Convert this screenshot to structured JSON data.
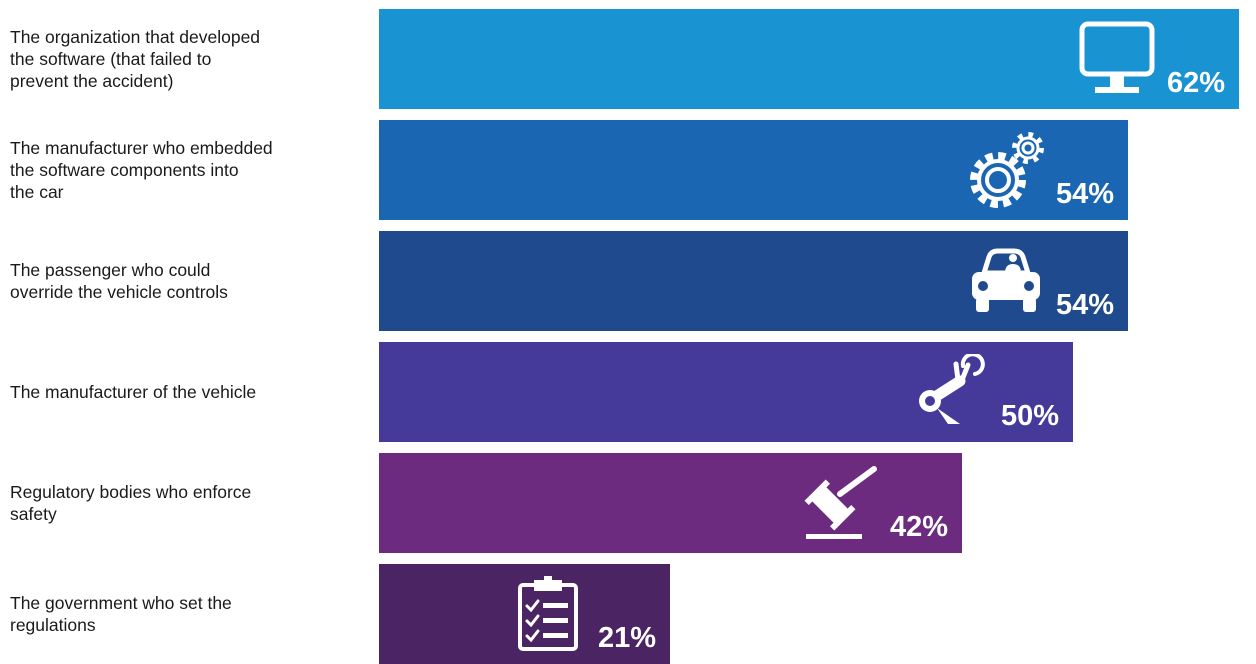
{
  "chart_data": {
    "type": "bar",
    "orientation": "horizontal",
    "categories": [
      "The organization that developed\nthe software (that failed to\nprevent the accident)",
      "The manufacturer who embedded\nthe software components into\nthe car",
      "The passenger who could\noverride the vehicle controls",
      "The manufacturer of the vehicle",
      "Regulatory bodies who enforce\nsafety",
      "The government who set the\nregulations"
    ],
    "values": [
      62,
      54,
      54,
      50,
      42,
      21
    ],
    "value_labels": [
      "62%",
      "54%",
      "54%",
      "50%",
      "42%",
      "21%"
    ],
    "unit": "%",
    "xlim": [
      0,
      62
    ],
    "bar_colors": [
      "#1a93d2",
      "#1a66b2",
      "#1f4a8e",
      "#453a99",
      "#6c2b7f",
      "#4a2463"
    ],
    "icons": [
      "monitor-icon",
      "gears-icon",
      "car-icon",
      "robot-arm-icon",
      "gavel-icon",
      "clipboard-checklist-icon"
    ],
    "title": "",
    "xlabel": "",
    "ylabel": "",
    "grid": false,
    "legend": "none"
  }
}
